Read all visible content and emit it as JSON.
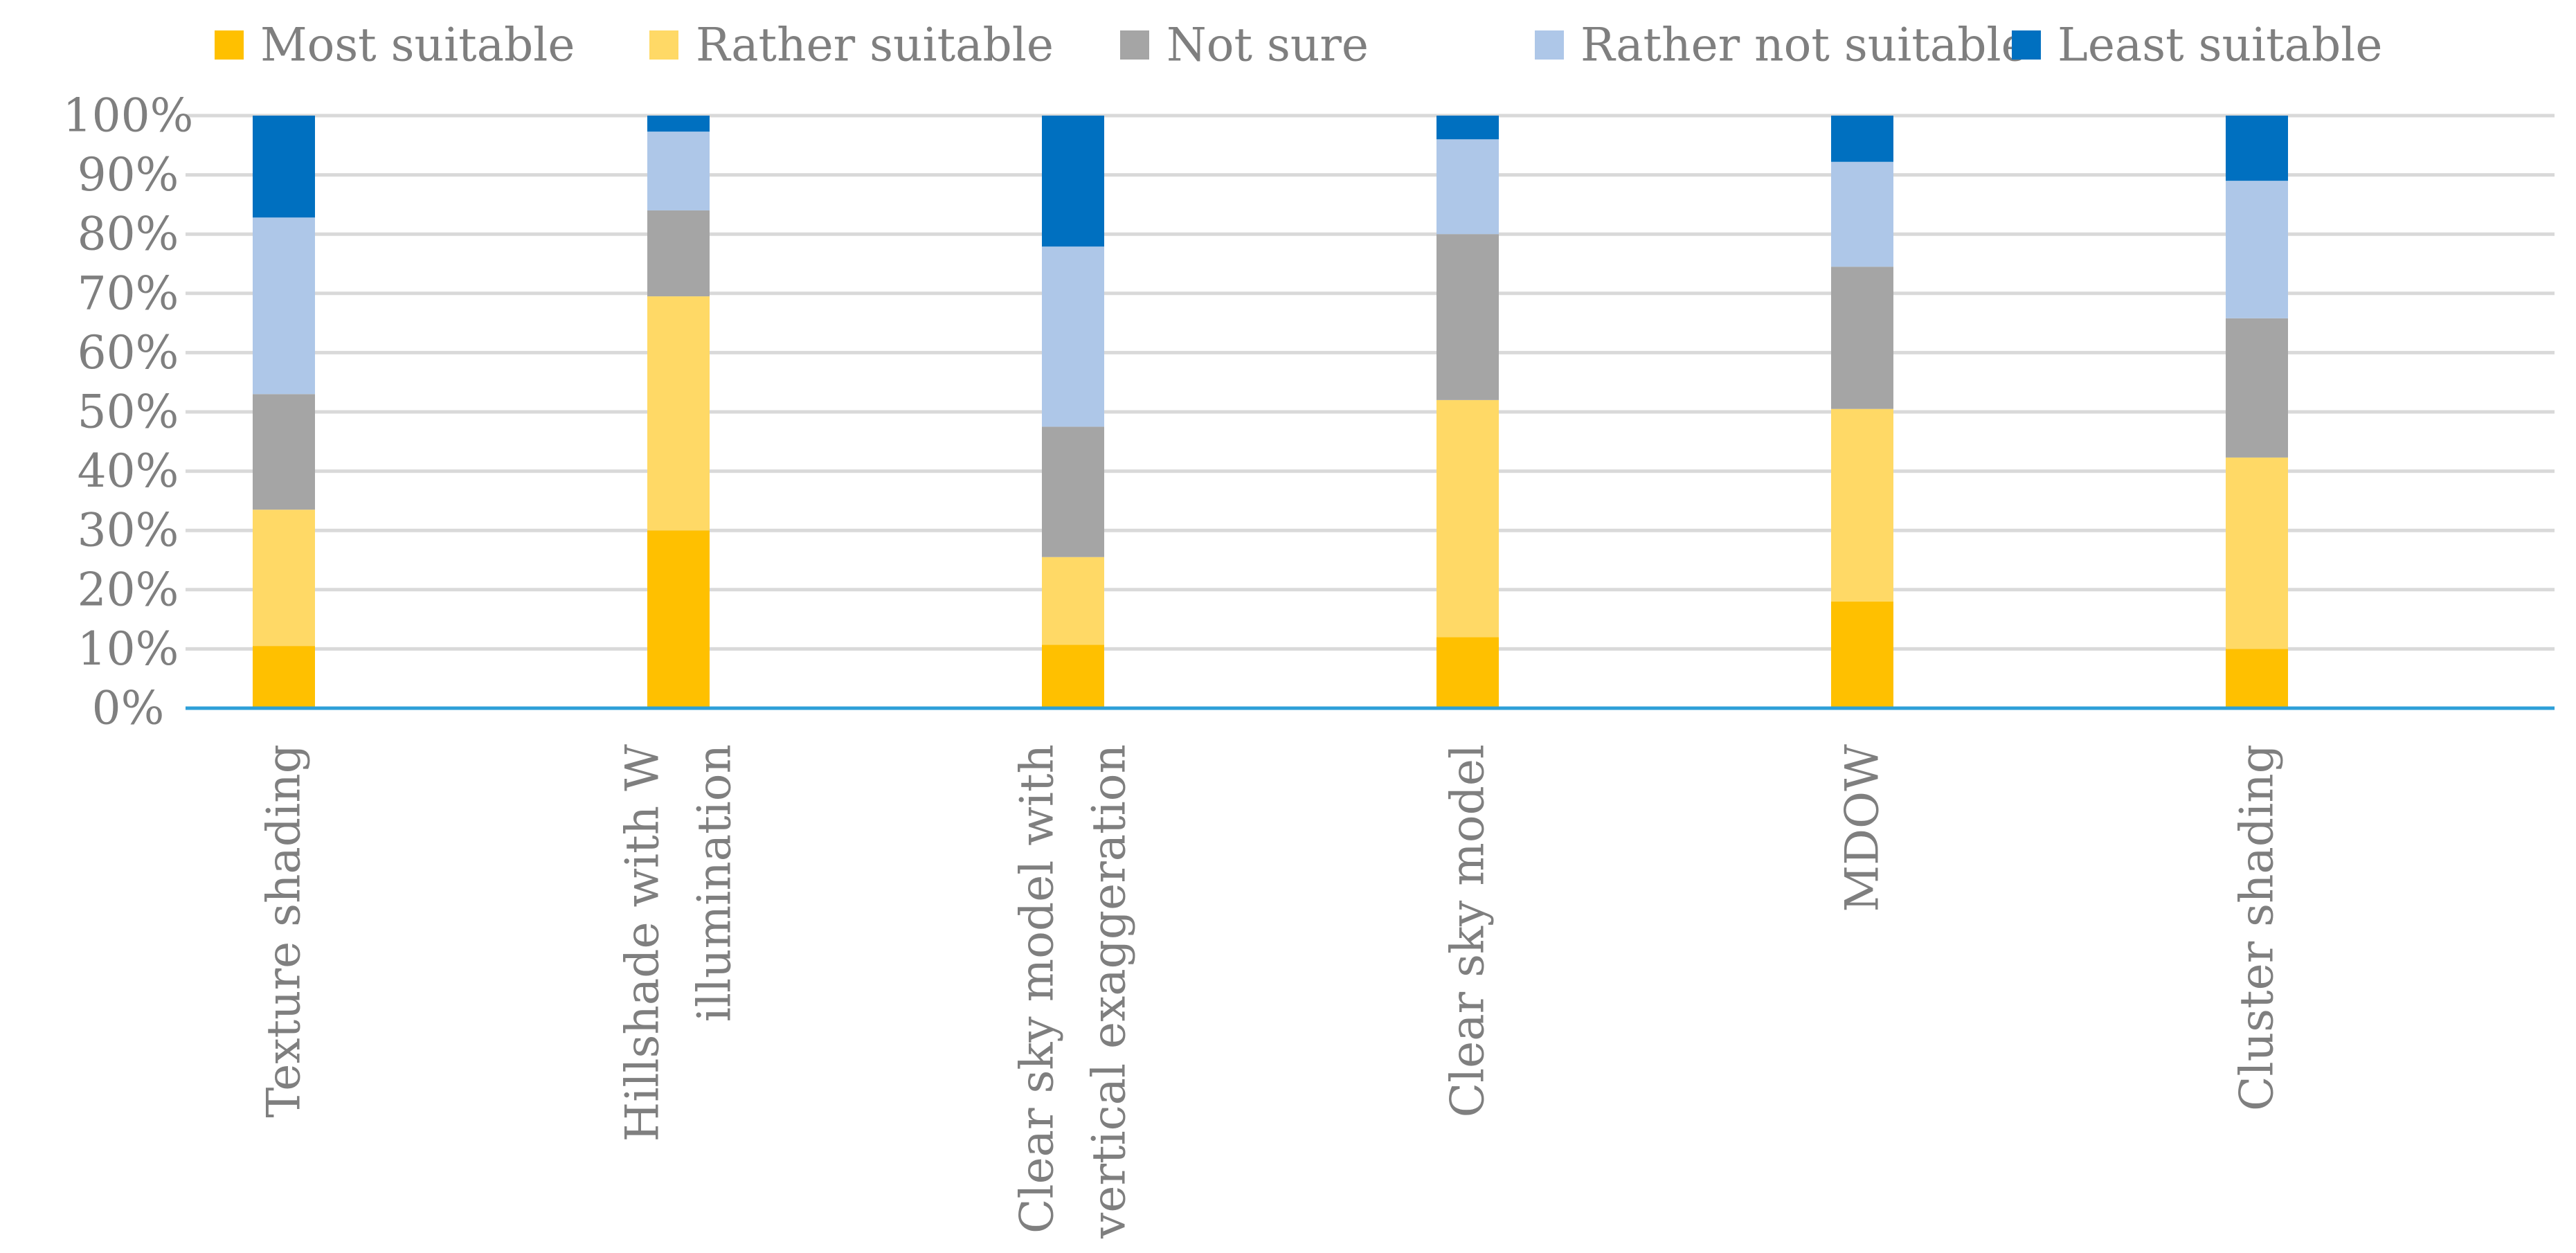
{
  "chart_data": {
    "type": "bar",
    "stacked": true,
    "percent": true,
    "title": "",
    "xlabel": "",
    "ylabel": "",
    "ylim": [
      0,
      100
    ],
    "yticks": [
      0,
      10,
      20,
      30,
      40,
      50,
      60,
      70,
      80,
      90,
      100
    ],
    "ytick_labels": [
      "0%",
      "10%",
      "20%",
      "30%",
      "40%",
      "50%",
      "60%",
      "70%",
      "80%",
      "90%",
      "100%"
    ],
    "grid": true,
    "legend_position": "top",
    "categories": [
      [
        "Texture shading"
      ],
      [
        "Hillshade with W",
        "illumination"
      ],
      [
        "Clear sky model with",
        "vertical exaggeration"
      ],
      [
        "Clear sky model"
      ],
      [
        "MDOW"
      ],
      [
        "Cluster shading"
      ]
    ],
    "series": [
      {
        "name": "Most suitable",
        "color": "#FFC000",
        "values": [
          10.5,
          30,
          10.7,
          12,
          18,
          10
        ]
      },
      {
        "name": "Rather suitable",
        "color": "#FFD966",
        "values": [
          23,
          39.5,
          14.8,
          40,
          32.5,
          32.3
        ]
      },
      {
        "name": "Not sure",
        "color": "#A5A5A5",
        "values": [
          19.5,
          14.5,
          22,
          28,
          24,
          23.5
        ]
      },
      {
        "name": "Rather not suitable",
        "color": "#AEC7E8",
        "values": [
          29.8,
          13.3,
          30.4,
          16,
          17.7,
          23.2
        ]
      },
      {
        "name": "Least suitable",
        "color": "#0070C0",
        "values": [
          17.2,
          2.7,
          22.1,
          4,
          7.8,
          11
        ]
      }
    ]
  }
}
